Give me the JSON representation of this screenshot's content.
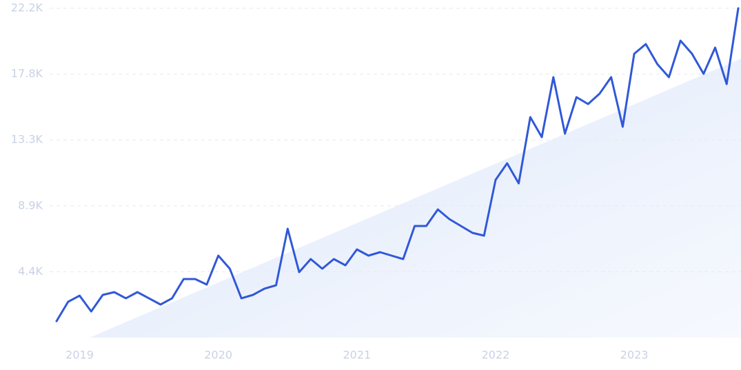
{
  "chart_data": {
    "type": "line",
    "categories": [
      null,
      null,
      "2019",
      null,
      null,
      null,
      null,
      null,
      null,
      null,
      null,
      null,
      null,
      null,
      "2020",
      null,
      null,
      null,
      null,
      null,
      null,
      null,
      null,
      null,
      null,
      null,
      "2021",
      null,
      null,
      null,
      null,
      null,
      null,
      null,
      null,
      null,
      null,
      null,
      "2022",
      null,
      null,
      null,
      null,
      null,
      null,
      null,
      null,
      null,
      null,
      null,
      "2023",
      null,
      null,
      null,
      null,
      null,
      null,
      null,
      null,
      null
    ],
    "series": [
      {
        "color": "#3058d8",
        "values": [
          1110,
          2415,
          2830,
          1765,
          2880,
          3065,
          2650,
          3065,
          2650,
          2230,
          2650,
          3950,
          3950,
          3575,
          5525,
          4645,
          2650,
          2880,
          3300,
          3530,
          7340,
          4410,
          5295,
          4645,
          5295,
          4875,
          5945,
          5525,
          5760,
          5525,
          5295,
          7525,
          7525,
          8640,
          7990,
          7525,
          7060,
          6875,
          10635,
          11750,
          10400,
          14860,
          13515,
          17555,
          13745,
          16210,
          15745,
          16440,
          17555,
          14210,
          19135,
          19785,
          18435,
          17555,
          20015,
          19135,
          17785,
          19550,
          17090,
          22200
        ]
      }
    ],
    "ylim": [
      0,
      22200
    ],
    "yticks": [
      {
        "value": 4440,
        "label": "4.4K"
      },
      {
        "value": 8880,
        "label": "8.9K"
      },
      {
        "value": 13320,
        "label": "13.3K"
      },
      {
        "value": 17760,
        "label": "17.8K"
      },
      {
        "value": 22200,
        "label": "22.2K"
      }
    ],
    "grid": true
  }
}
